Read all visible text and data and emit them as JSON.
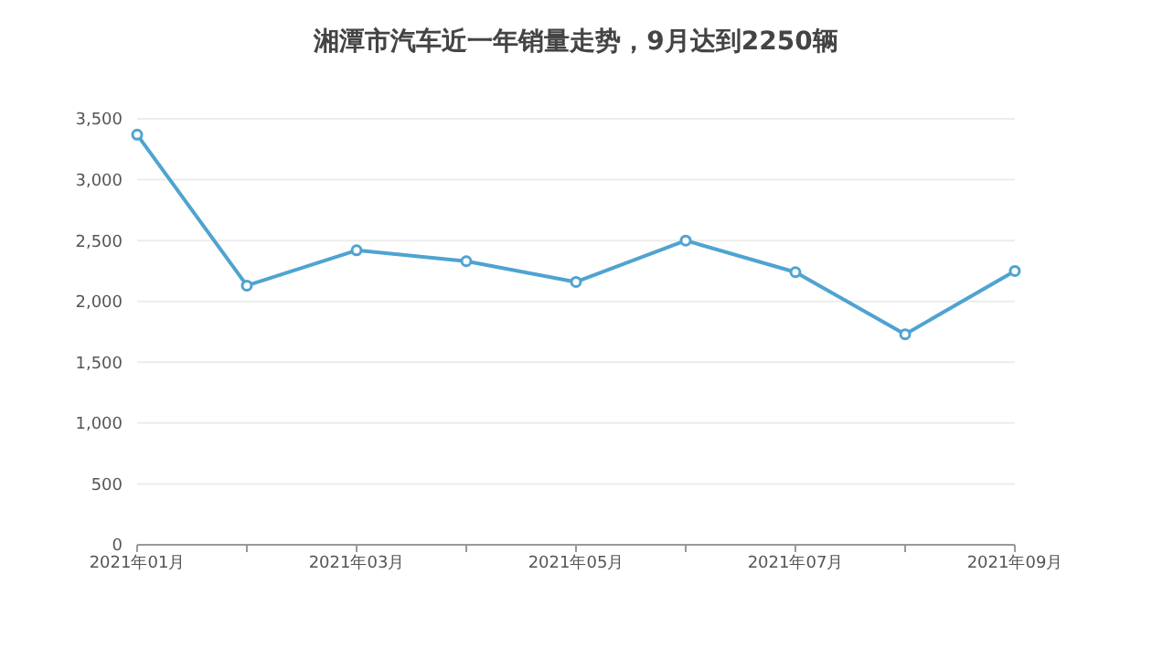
{
  "chart_data": {
    "type": "line",
    "title": "湘潭市汽车近一年销量走势，9月达到2250辆",
    "categories": [
      "2021年01月",
      null,
      "2021年03月",
      null,
      "2021年05月",
      null,
      "2021年07月",
      null,
      "2021年09月"
    ],
    "series": [
      {
        "color": "#4fa3d1",
        "values": [
          3370,
          2130,
          2420,
          2330,
          2160,
          2500,
          2240,
          1730,
          2250
        ]
      }
    ],
    "ylim": [
      0,
      3500
    ],
    "yticks": [
      0,
      500,
      {
        "value": 1000,
        "label": "1,000"
      },
      {
        "value": 1500,
        "label": "1,500"
      },
      {
        "value": 2000,
        "label": "2,000"
      },
      {
        "value": 2500,
        "label": "2,500"
      },
      {
        "value": 3000,
        "label": "3,000"
      },
      {
        "value": 3500,
        "label": "3,500"
      }
    ],
    "grid": "y",
    "marker": "circle",
    "line_style": "solid"
  }
}
